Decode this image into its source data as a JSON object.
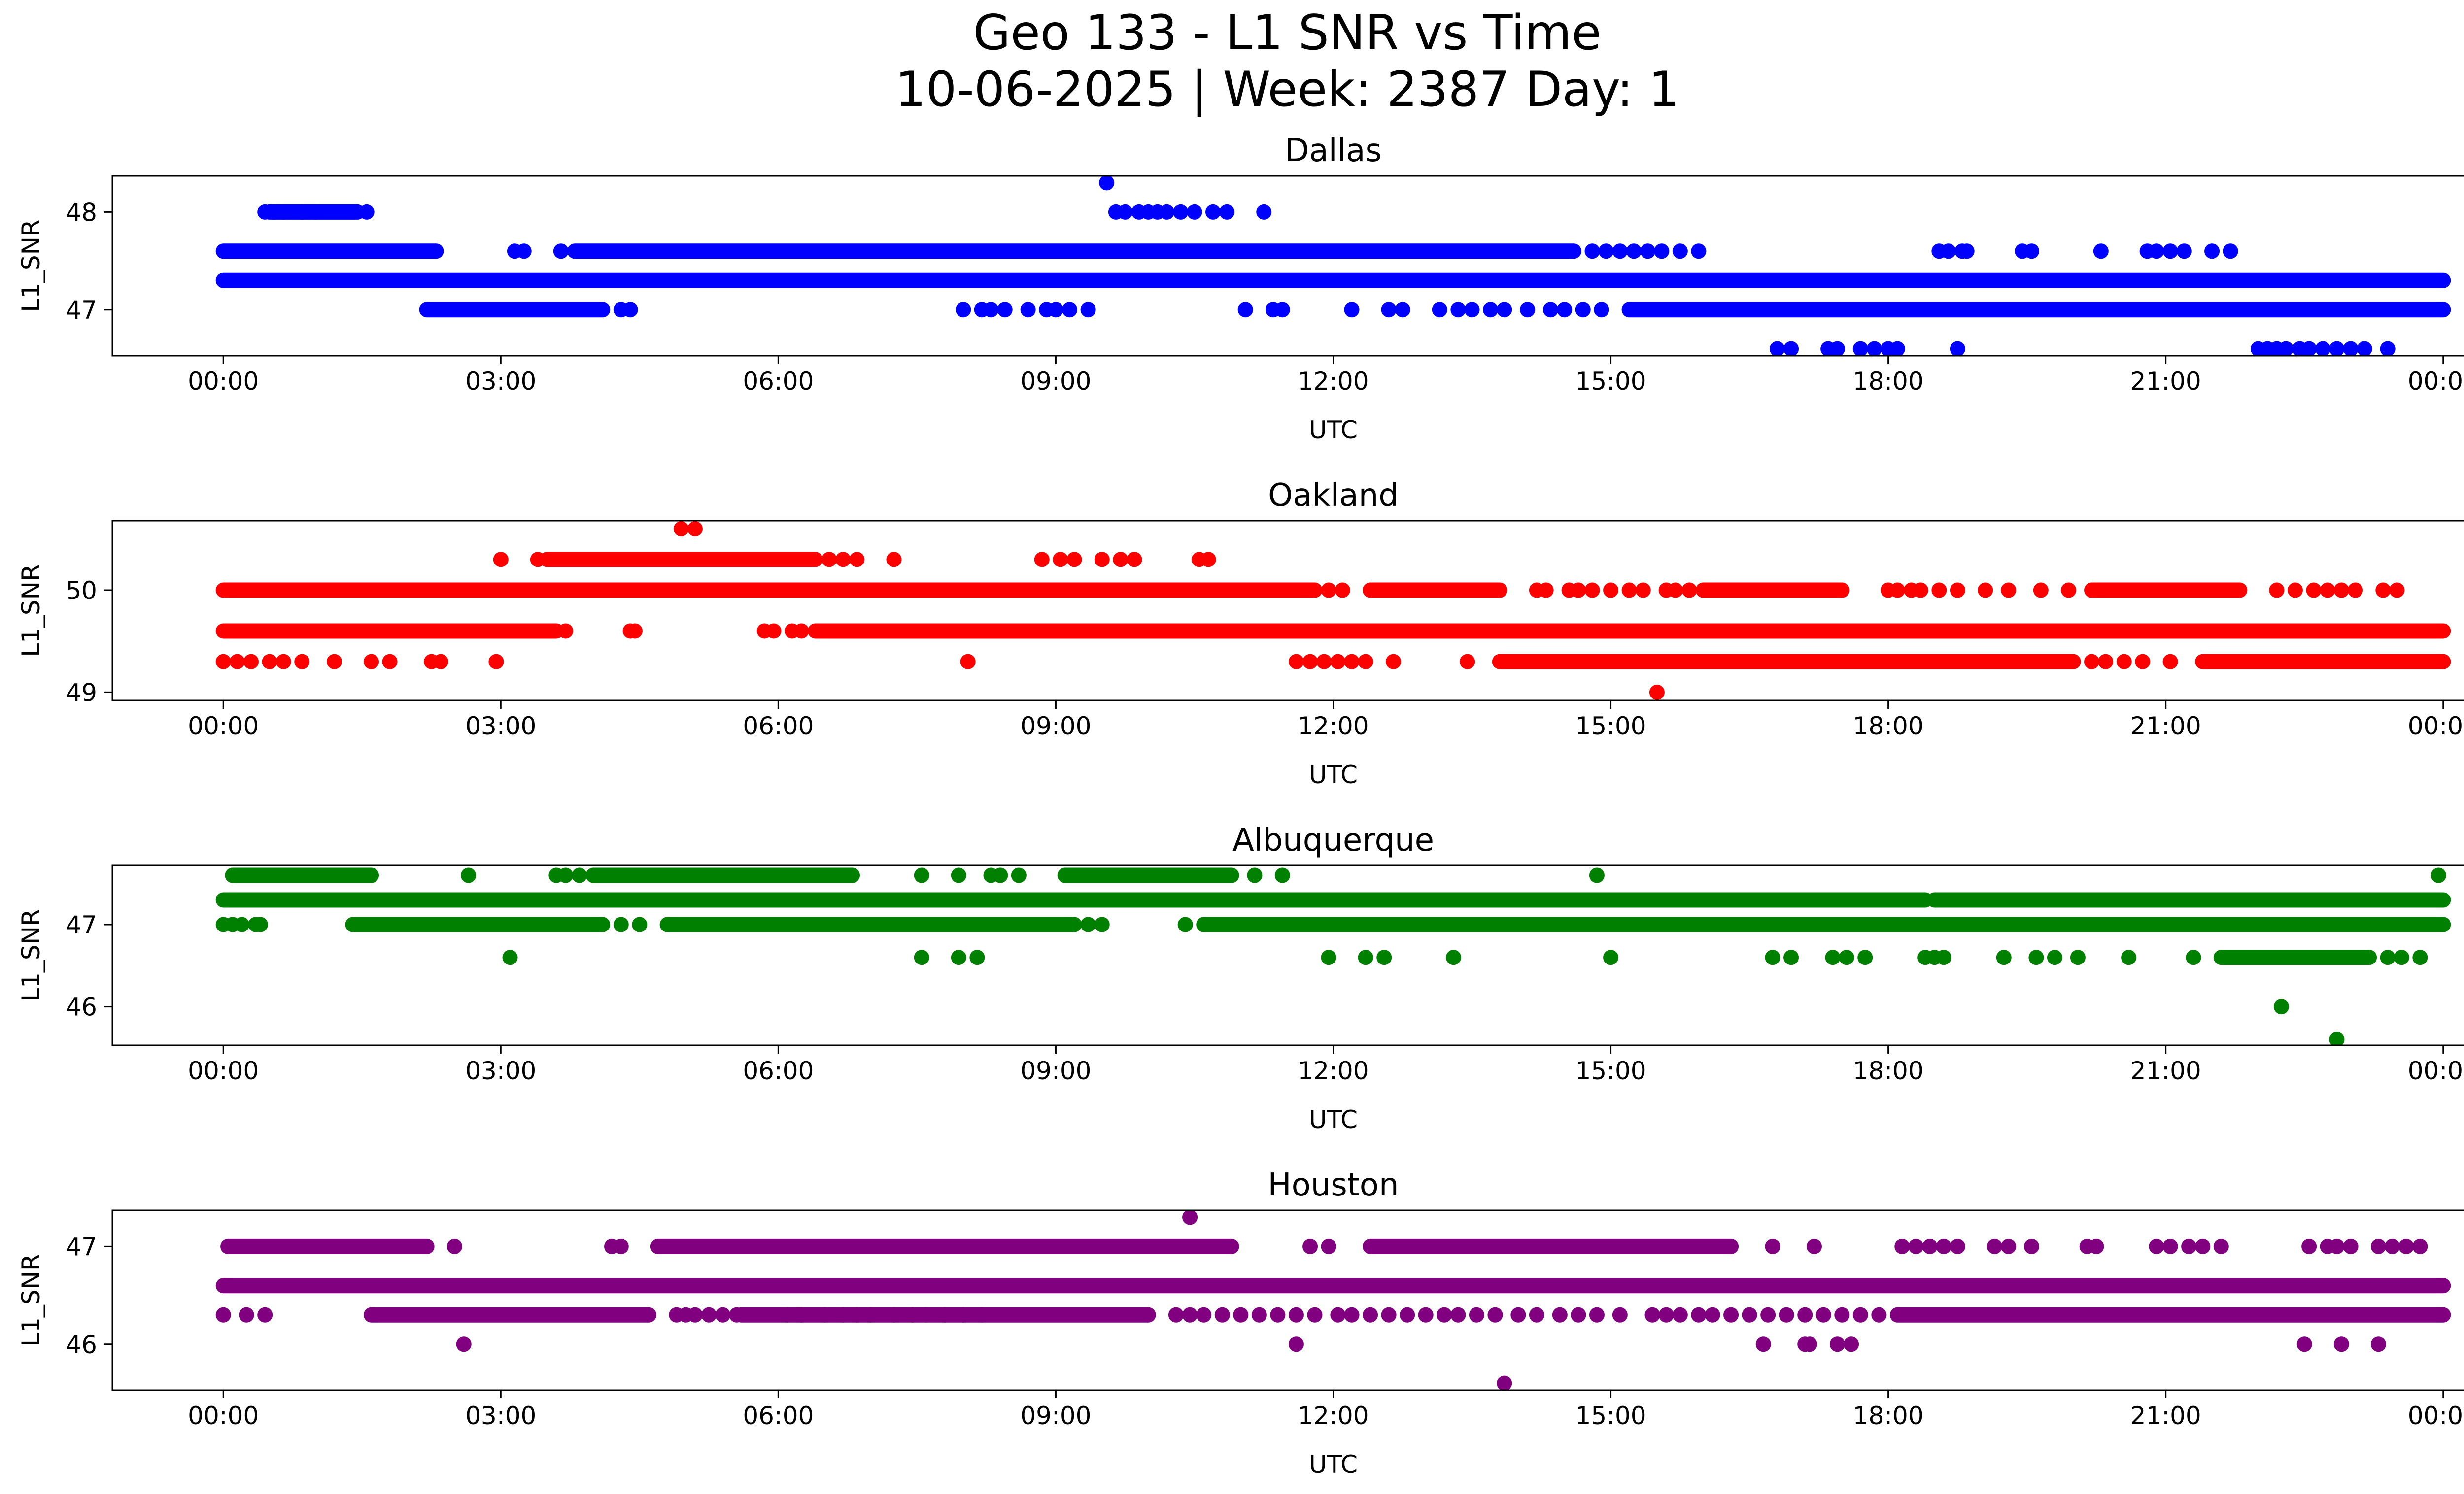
{
  "figure": {
    "title_line1": "Geo 133 - L1 SNR vs Time",
    "title_line2": "10-06-2025 | Week: 2387 Day: 1"
  },
  "chart_data": [
    {
      "type": "scatter",
      "title": "Dallas",
      "xlabel": "UTC",
      "ylabel": "L1_SNR",
      "color": "#0000ff",
      "xticks": [
        "00:00",
        "03:00",
        "06:00",
        "09:00",
        "12:00",
        "15:00",
        "18:00",
        "21:00",
        "00:00"
      ],
      "yticks": [
        47,
        48
      ],
      "ylim": [
        46.53,
        48.37
      ],
      "xlim_hours": [
        -1.2,
        25.2
      ],
      "grid": false,
      "levels": [
        {
          "y": 47.3,
          "segments": [
            [
              0,
              24
            ]
          ],
          "points": []
        },
        {
          "y": 47.6,
          "segments": [
            [
              0,
              2.3
            ],
            [
              3.8,
              14.6
            ]
          ],
          "points": [
            3.15,
            3.25,
            3.65,
            14.8,
            14.95,
            15.1,
            15.25,
            15.4,
            15.55,
            15.75,
            15.95,
            18.55,
            18.65,
            18.8,
            18.85,
            19.45,
            19.55,
            20.3,
            20.8,
            20.9,
            21.05,
            21.2,
            21.5,
            21.7
          ]
        },
        {
          "y": 48.0,
          "segments": [
            [
              0.5,
              1.45
            ]
          ],
          "points": [
            0.45,
            0.55,
            0.65,
            0.85,
            1.0,
            1.55,
            9.65,
            9.75,
            9.9,
            10.0,
            10.1,
            10.2,
            10.35,
            10.5,
            10.7,
            10.85,
            11.25
          ]
        },
        {
          "y": 47.0,
          "segments": [
            [
              2.2,
              4.1
            ],
            [
              15.2,
              24
            ]
          ],
          "points": [
            4.3,
            4.4,
            8.0,
            8.2,
            8.3,
            8.45,
            8.7,
            8.9,
            9.0,
            9.15,
            9.35,
            11.05,
            11.35,
            11.45,
            12.2,
            12.6,
            12.75,
            13.15,
            13.35,
            13.5,
            13.7,
            13.85,
            14.1,
            14.35,
            14.5,
            14.7,
            14.9
          ]
        },
        {
          "y": 46.6,
          "segments": [],
          "points": [
            16.8,
            16.95,
            17.35,
            17.45,
            17.7,
            17.85,
            18.0,
            18.1,
            18.75,
            22.0,
            22.1,
            22.2,
            22.3,
            22.45,
            22.55,
            22.7,
            22.85,
            23.0,
            23.15,
            23.4
          ]
        },
        {
          "y": 48.3,
          "segments": [],
          "points": [
            9.55
          ]
        }
      ]
    },
    {
      "type": "scatter",
      "title": "Oakland",
      "xlabel": "UTC",
      "ylabel": "L1_SNR",
      "color": "#ff0000",
      "xticks": [
        "00:00",
        "03:00",
        "06:00",
        "09:00",
        "12:00",
        "15:00",
        "18:00",
        "21:00",
        "00:00"
      ],
      "yticks": [
        49,
        50
      ],
      "ylim": [
        48.92,
        50.68
      ],
      "xlim_hours": [
        -1.2,
        25.2
      ],
      "grid": false,
      "levels": [
        {
          "y": 49.6,
          "segments": [
            [
              0,
              3.6
            ],
            [
              6.4,
              24
            ]
          ],
          "points": [
            3.7,
            4.4,
            4.45,
            5.85,
            5.95,
            6.15,
            6.25
          ]
        },
        {
          "y": 50.0,
          "segments": [
            [
              0,
              11.8
            ],
            [
              12.4,
              13.8
            ],
            [
              16,
              17.5
            ],
            [
              20.2,
              21.8
            ]
          ],
          "points": [
            11.95,
            12.1,
            14.2,
            14.3,
            14.55,
            14.65,
            14.8,
            15.0,
            15.2,
            15.35,
            15.6,
            15.7,
            15.85,
            16.3,
            18.0,
            18.1,
            18.25,
            18.35,
            18.55,
            18.75,
            19.05,
            19.3,
            19.65,
            19.95,
            22.2,
            22.4,
            22.6,
            22.75,
            22.9,
            23.05,
            23.35,
            23.5
          ]
        },
        {
          "y": 49.3,
          "segments": [
            [
              13.8,
              20
            ],
            [
              21.4,
              24
            ]
          ],
          "points": [
            0.0,
            0.15,
            0.3,
            0.5,
            0.65,
            0.85,
            1.2,
            1.6,
            1.8,
            2.25,
            2.35,
            2.95,
            8.05,
            11.6,
            11.75,
            11.9,
            12.05,
            12.2,
            12.35,
            12.65,
            13.45,
            20.2,
            20.35,
            20.55,
            20.75,
            21.05
          ]
        },
        {
          "y": 50.3,
          "segments": [
            [
              3.5,
              6.4
            ]
          ],
          "points": [
            3.0,
            3.4,
            6.55,
            6.7,
            6.85,
            7.25,
            8.85,
            9.05,
            9.2,
            9.5,
            9.7,
            9.85,
            10.55,
            10.65
          ]
        },
        {
          "y": 50.6,
          "segments": [],
          "points": [
            4.95,
            5.1
          ]
        },
        {
          "y": 49.0,
          "segments": [],
          "points": [
            15.5
          ]
        }
      ]
    },
    {
      "type": "scatter",
      "title": "Albuquerque",
      "xlabel": "UTC",
      "ylabel": "L1_SNR",
      "color": "#008000",
      "xticks": [
        "00:00",
        "03:00",
        "06:00",
        "09:00",
        "12:00",
        "15:00",
        "18:00",
        "21:00",
        "00:00"
      ],
      "yticks": [
        46,
        47
      ],
      "ylim": [
        45.53,
        47.72
      ],
      "xlim_hours": [
        -1.2,
        25.2
      ],
      "grid": false,
      "levels": [
        {
          "y": 47.3,
          "segments": [
            [
              0,
              18.4
            ],
            [
              18.5,
              24
            ]
          ],
          "points": []
        },
        {
          "y": 47.0,
          "segments": [
            [
              1.4,
              4.1
            ],
            [
              4.8,
              9.2
            ],
            [
              10.6,
              24
            ]
          ],
          "points": [
            0.0,
            0.1,
            0.2,
            0.35,
            0.4,
            4.3,
            4.5,
            4.95,
            5.05,
            5.2,
            5.4,
            5.6,
            5.75,
            6.0,
            6.15,
            6.3,
            6.5,
            6.7,
            6.9,
            7.1,
            9.35,
            9.5,
            10.4
          ]
        },
        {
          "y": 47.6,
          "segments": [
            [
              0.1,
              1.6
            ],
            [
              4.0,
              6.8
            ],
            [
              9.1,
              10.9
            ]
          ],
          "points": [
            2.65,
            3.6,
            3.7,
            3.85,
            7.55,
            7.95,
            8.3,
            8.4,
            8.6,
            11.15,
            11.45,
            14.85,
            23.95
          ]
        },
        {
          "y": 46.6,
          "segments": [
            [
              21.6,
              23.2
            ]
          ],
          "points": [
            3.1,
            7.55,
            7.95,
            8.15,
            11.95,
            12.35,
            12.55,
            13.3,
            15.0,
            16.75,
            16.95,
            17.4,
            17.55,
            17.75,
            18.4,
            18.5,
            18.6,
            19.25,
            19.6,
            19.8,
            20.05,
            20.6,
            21.3,
            23.4,
            23.55,
            23.75
          ]
        },
        {
          "y": 46.0,
          "segments": [],
          "points": [
            22.25
          ]
        },
        {
          "y": 45.6,
          "segments": [],
          "points": [
            22.85
          ]
        }
      ]
    },
    {
      "type": "scatter",
      "title": "Houston",
      "xlabel": "UTC",
      "ylabel": "L1_SNR",
      "color": "#800080",
      "xticks": [
        "00:00",
        "03:00",
        "06:00",
        "09:00",
        "12:00",
        "15:00",
        "18:00",
        "21:00",
        "00:00"
      ],
      "yticks": [
        46,
        47
      ],
      "ylim": [
        45.53,
        47.37
      ],
      "xlim_hours": [
        -1.2,
        25.2
      ],
      "grid": false,
      "levels": [
        {
          "y": 46.6,
          "segments": [
            [
              0,
              24
            ]
          ],
          "points": []
        },
        {
          "y": 46.3,
          "segments": [
            [
              1.6,
              4.6
            ],
            [
              5.6,
              10
            ],
            [
              18.1,
              24
            ]
          ],
          "points": [
            0.0,
            0.25,
            0.45,
            4.9,
            5.0,
            5.1,
            5.25,
            5.4,
            5.55,
            6.1,
            6.25,
            6.5,
            6.7,
            6.85,
            7.0,
            7.25,
            7.45,
            7.6,
            7.8,
            8.0,
            8.2,
            10.3,
            10.45,
            10.6,
            10.8,
            11.0,
            11.2,
            11.4,
            11.6,
            11.8,
            12.05,
            12.2,
            12.4,
            12.6,
            12.8,
            13.0,
            13.2,
            13.35,
            13.55,
            13.75,
            14.0,
            14.2,
            14.45,
            14.65,
            14.85,
            15.1,
            15.45,
            15.6,
            15.75,
            15.95,
            16.1,
            16.3,
            16.5,
            16.7,
            16.9,
            17.1,
            17.3,
            17.5,
            17.7,
            17.9
          ]
        },
        {
          "y": 47.0,
          "segments": [
            [
              0.05,
              2.2
            ],
            [
              4.7,
              10.9
            ],
            [
              12.4,
              16.3
            ]
          ],
          "points": [
            2.5,
            4.2,
            4.3,
            11.75,
            11.95,
            16.75,
            17.2,
            18.15,
            18.3,
            18.45,
            18.6,
            18.75,
            19.15,
            19.3,
            19.55,
            20.15,
            20.25,
            20.9,
            21.05,
            21.25,
            21.4,
            21.6,
            22.55,
            22.75,
            22.85,
            23.0,
            23.3,
            23.45,
            23.6,
            23.75
          ]
        },
        {
          "y": 46.0,
          "segments": [],
          "points": [
            2.6,
            11.6,
            16.65,
            17.1,
            17.15,
            17.45,
            17.6,
            22.5,
            22.9,
            23.3
          ]
        },
        {
          "y": 47.3,
          "segments": [],
          "points": [
            10.45
          ]
        },
        {
          "y": 45.6,
          "segments": [],
          "points": [
            13.85
          ]
        }
      ]
    }
  ]
}
